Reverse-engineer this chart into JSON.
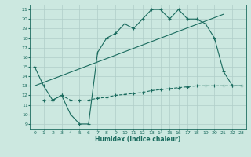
{
  "xlabel": "Humidex (Indice chaleur)",
  "xlim": [
    -0.5,
    23.5
  ],
  "ylim": [
    8.5,
    21.5
  ],
  "yticks": [
    9,
    10,
    11,
    12,
    13,
    14,
    15,
    16,
    17,
    18,
    19,
    20,
    21
  ],
  "xticks": [
    0,
    1,
    2,
    3,
    4,
    5,
    6,
    7,
    8,
    9,
    10,
    11,
    12,
    13,
    14,
    15,
    16,
    17,
    18,
    19,
    20,
    21,
    22,
    23
  ],
  "bg_color": "#cce8e0",
  "line_color": "#1a6b5e",
  "grid_color": "#b8d8d0",
  "line1_x": [
    0,
    1,
    2,
    3,
    4,
    5,
    6,
    7,
    8,
    9,
    10,
    11,
    12,
    13,
    14,
    15,
    16,
    17,
    18,
    19,
    20,
    21,
    22,
    23
  ],
  "line1_y": [
    15.0,
    13.0,
    11.5,
    12.0,
    10.0,
    9.0,
    9.0,
    16.5,
    18.0,
    18.5,
    19.5,
    19.0,
    20.0,
    21.0,
    21.0,
    20.0,
    21.0,
    20.0,
    20.0,
    19.5,
    18.0,
    14.5,
    13.0,
    13.0
  ],
  "line2_x": [
    1,
    2,
    3,
    4,
    5,
    6,
    7,
    8,
    9,
    10,
    11,
    12,
    13,
    14,
    15,
    16,
    17,
    18,
    19,
    20,
    21,
    22,
    23
  ],
  "line2_y": [
    11.5,
    11.5,
    12.0,
    11.5,
    11.5,
    11.5,
    11.7,
    11.8,
    12.0,
    12.1,
    12.2,
    12.3,
    12.5,
    12.6,
    12.7,
    12.8,
    12.9,
    13.0,
    13.0,
    13.0,
    13.0,
    13.0,
    13.0
  ],
  "line3_x": [
    0,
    21
  ],
  "line3_y": [
    13.0,
    20.5
  ]
}
